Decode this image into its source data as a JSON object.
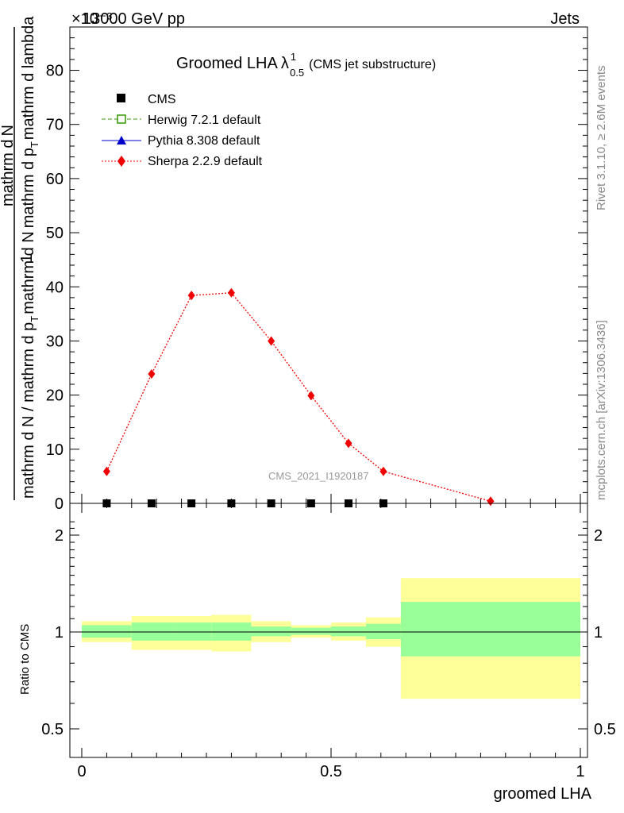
{
  "header": {
    "energy_label": "13000 GeV pp",
    "process_label": "Jets",
    "exponent_label": "×10⁻³"
  },
  "side_labels": {
    "rivet": "Rivet 3.1.10, ≥ 2.6M events",
    "mcplots": "mcplots.cern.ch [arXiv:1306.3436]"
  },
  "watermark": "CMS_2021_I1920187",
  "chart_data": [
    {
      "type": "line",
      "title": "Groomed LHA",
      "title_suffix": "(CMS jet substructure)",
      "title_symbol": {
        "base": "λ",
        "sup": "1",
        "sub": "0.5"
      },
      "ylabel_top": "1",
      "ylabel_bottom_line1": "mathrm d N / mathrm d p",
      "ylabel_bottom_line2": "T",
      "ylabel_bottom_line3": "mathrm d N",
      "ylabel_bottom_line4": "mathrm d p",
      "ylabel_bottom_line5": "T",
      "ylabel_bottom_line6": "mathrm d lambda",
      "ylabel_num": "mathrm d",
      "ylabel_num2": "N",
      "ylim": [
        0,
        88
      ],
      "xlim": [
        0,
        1
      ],
      "yticks": [
        0,
        10,
        20,
        30,
        40,
        50,
        60,
        70,
        80
      ],
      "legend_position": "top-left",
      "legend": [
        {
          "name": "CMS",
          "color": "#000000",
          "marker": "square-filled"
        },
        {
          "name": "Herwig 7.2.1 default",
          "color": "#339900",
          "marker": "square-open",
          "line": "dashed"
        },
        {
          "name": "Pythia 8.308 default",
          "color": "#0000cc",
          "marker": "triangle",
          "line": "solid"
        },
        {
          "name": "Sherpa 2.2.9 default",
          "color": "#ee0000",
          "marker": "diamond",
          "line": "dotted"
        }
      ],
      "series": [
        {
          "name": "CMS",
          "x": [
            0.05,
            0.14,
            0.22,
            0.3,
            0.38,
            0.46,
            0.535,
            0.605
          ],
          "y": [
            0,
            0,
            0,
            0,
            0,
            0,
            0,
            0
          ]
        },
        {
          "name": "Sherpa 2.2.9 default",
          "x": [
            0.05,
            0.14,
            0.22,
            0.3,
            0.38,
            0.46,
            0.535,
            0.605,
            0.82
          ],
          "y": [
            5.9,
            23.9,
            38.4,
            38.9,
            30.0,
            19.9,
            11.1,
            5.9,
            0.4
          ]
        }
      ]
    },
    {
      "type": "area",
      "ylabel": "Ratio to CMS",
      "xlabel": "groomed LHA",
      "ylim": [
        0.4,
        2.3
      ],
      "xlim": [
        0,
        1
      ],
      "yticks": [
        0.5,
        1,
        2
      ],
      "ytick_labels": [
        "0.5",
        "1",
        "2"
      ],
      "xticks": [
        0,
        0.5,
        1
      ],
      "xtick_labels": [
        "0",
        "0.5",
        "1"
      ],
      "reference_line": 1,
      "bins": [
        {
          "x0": 0.0,
          "x1": 0.1,
          "stat_lo": 0.96,
          "stat_hi": 1.05,
          "tot_lo": 0.93,
          "tot_hi": 1.08
        },
        {
          "x0": 0.1,
          "x1": 0.18,
          "stat_lo": 0.94,
          "stat_hi": 1.07,
          "tot_lo": 0.88,
          "tot_hi": 1.12
        },
        {
          "x0": 0.18,
          "x1": 0.26,
          "stat_lo": 0.94,
          "stat_hi": 1.07,
          "tot_lo": 0.88,
          "tot_hi": 1.12
        },
        {
          "x0": 0.26,
          "x1": 0.34,
          "stat_lo": 0.94,
          "stat_hi": 1.07,
          "tot_lo": 0.87,
          "tot_hi": 1.13
        },
        {
          "x0": 0.34,
          "x1": 0.42,
          "stat_lo": 0.97,
          "stat_hi": 1.04,
          "tot_lo": 0.93,
          "tot_hi": 1.08
        },
        {
          "x0": 0.42,
          "x1": 0.5,
          "stat_lo": 0.98,
          "stat_hi": 1.03,
          "tot_lo": 0.96,
          "tot_hi": 1.05
        },
        {
          "x0": 0.5,
          "x1": 0.57,
          "stat_lo": 0.97,
          "stat_hi": 1.04,
          "tot_lo": 0.94,
          "tot_hi": 1.07
        },
        {
          "x0": 0.57,
          "x1": 0.64,
          "stat_lo": 0.95,
          "stat_hi": 1.06,
          "tot_lo": 0.9,
          "tot_hi": 1.11
        },
        {
          "x0": 0.64,
          "x1": 1.0,
          "stat_lo": 0.84,
          "stat_hi": 1.24,
          "tot_lo": 0.62,
          "tot_hi": 1.47
        }
      ],
      "band_colors": {
        "stat": "#99ff99",
        "total": "#ffff99"
      }
    }
  ]
}
